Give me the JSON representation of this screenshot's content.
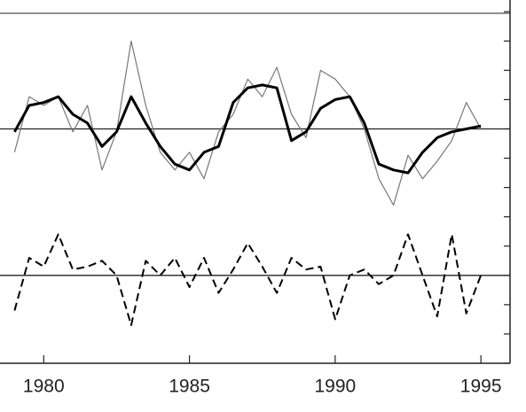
{
  "chart_data": {
    "type": "line",
    "x": [
      1979,
      1979.5,
      1980,
      1980.5,
      1981,
      1981.5,
      1982,
      1982.5,
      1983,
      1983.5,
      1984,
      1984.5,
      1985,
      1985.5,
      1986,
      1986.5,
      1987,
      1987.5,
      1988,
      1988.5,
      1989,
      1989.5,
      1990,
      1990.5,
      1991,
      1991.5,
      1992,
      1992.5,
      1993,
      1993.5,
      1994,
      1994.5,
      1995
    ],
    "series": [
      {
        "color": "#777777",
        "width": 1.2,
        "dash": "solid",
        "values": [
          7.2,
          9.1,
          8.8,
          9.1,
          7.9,
          8.8,
          6.6,
          7.9,
          11.0,
          8.8,
          7.2,
          6.6,
          7.2,
          6.3,
          7.9,
          8.5,
          9.7,
          9.1,
          10.1,
          8.5,
          7.7,
          10.0,
          9.7,
          9.1,
          8.0,
          6.3,
          5.4,
          7.1,
          6.3,
          6.9,
          7.6,
          8.9,
          8.0
        ]
      },
      {
        "color": "#000000",
        "width": 3,
        "dash": "solid",
        "values": [
          7.9,
          8.8,
          8.9,
          9.1,
          8.5,
          8.2,
          7.4,
          7.9,
          9.1,
          8.2,
          7.4,
          6.8,
          6.6,
          7.2,
          7.4,
          8.9,
          9.4,
          9.5,
          9.4,
          7.6,
          7.9,
          8.7,
          9.0,
          9.1,
          8.2,
          6.8,
          6.6,
          6.5,
          7.2,
          7.7,
          7.9,
          8.0,
          8.1
        ]
      },
      {
        "color": "#000000",
        "width": 2,
        "dash": "dashed",
        "values": [
          1.8,
          3.6,
          3.3,
          4.4,
          3.2,
          3.3,
          3.5,
          3.0,
          1.3,
          3.5,
          3.0,
          3.6,
          2.6,
          3.6,
          2.4,
          3.2,
          4.1,
          3.3,
          2.4,
          3.6,
          3.2,
          3.3,
          1.5,
          3.0,
          3.2,
          2.7,
          3.0,
          4.4,
          3.0,
          1.6,
          4.4,
          1.7,
          3.0
        ]
      }
    ],
    "hlines": [
      8,
      3
    ],
    "xlim": [
      1978.5,
      1996
    ],
    "xticks": [
      1980,
      1985,
      1990,
      1995
    ],
    "ylim": [
      0,
      12.4
    ],
    "yticks": [
      0,
      1,
      2,
      3,
      4,
      5,
      6,
      7,
      8,
      9,
      10,
      11,
      12
    ]
  }
}
